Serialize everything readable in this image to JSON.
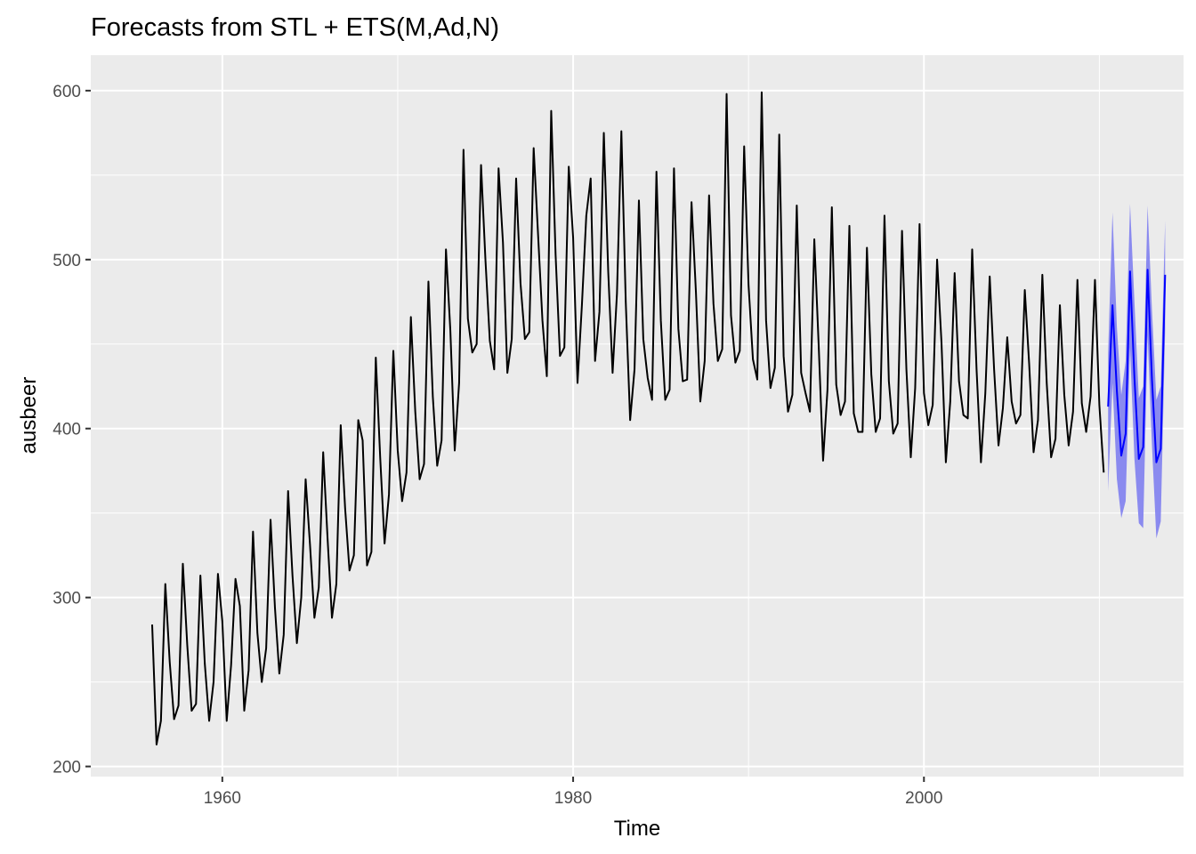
{
  "chart_data": {
    "type": "line",
    "title": "Forecasts from STL +  ETS(M,Ad,N)",
    "xlabel": "Time",
    "ylabel": "ausbeer",
    "xlim": [
      1952.5,
      2014.8
    ],
    "ylim": [
      194,
      621
    ],
    "x_ticks": [
      1960,
      1980,
      2000
    ],
    "x_tick_labels": [
      "1960",
      "1980",
      "2000"
    ],
    "y_ticks": [
      200,
      300,
      400,
      500,
      600
    ],
    "y_tick_labels": [
      "200",
      "300",
      "400",
      "500",
      "600"
    ],
    "grid": true,
    "start": 1956.0,
    "frequency": 4,
    "series": [
      {
        "name": "ausbeer",
        "color": "#000000",
        "values": [
          284,
          213,
          227,
          308,
          262,
          228,
          236,
          320,
          272,
          233,
          237,
          313,
          261,
          227,
          250,
          314,
          286,
          227,
          260,
          311,
          295,
          233,
          257,
          339,
          279,
          250,
          270,
          346,
          294,
          255,
          278,
          363,
          313,
          273,
          300,
          370,
          331,
          288,
          306,
          386,
          335,
          288,
          308,
          402,
          353,
          316,
          325,
          405,
          393,
          319,
          327,
          442,
          383,
          332,
          361,
          446,
          387,
          357,
          374,
          466,
          410,
          370,
          379,
          487,
          419,
          378,
          393,
          506,
          458,
          387,
          427,
          565,
          465,
          445,
          450,
          556,
          500,
          452,
          435,
          554,
          510,
          433,
          453,
          548,
          486,
          453,
          457,
          566,
          515,
          464,
          431,
          588,
          503,
          443,
          448,
          555,
          513,
          427,
          473,
          526,
          548,
          440,
          469,
          575,
          493,
          433,
          480,
          576,
          475,
          405,
          435,
          535,
          453,
          430,
          417,
          552,
          464,
          417,
          423,
          554,
          459,
          428,
          429,
          534,
          481,
          416,
          440,
          538,
          474,
          440,
          447,
          598,
          467,
          439,
          446,
          567,
          485,
          441,
          429,
          599,
          464,
          424,
          436,
          574,
          443,
          410,
          420,
          532,
          433,
          421,
          410,
          512,
          449,
          381,
          423,
          531,
          426,
          408,
          416,
          520,
          409,
          398,
          398,
          507,
          432,
          398,
          406,
          526,
          428,
          397,
          403,
          517,
          435,
          383,
          424,
          521,
          421,
          402,
          414,
          500,
          451,
          380,
          416,
          492,
          428,
          408,
          406,
          506,
          435,
          380,
          421,
          490,
          435,
          390,
          412,
          454,
          416,
          403,
          408,
          482,
          438,
          386,
          405,
          491,
          427,
          383,
          394,
          473,
          420,
          390,
          410,
          488,
          415,
          398,
          419,
          488,
          414,
          374
        ]
      }
    ],
    "forecast": {
      "name": "STL + ETS(M,Ad,N) forecast",
      "line_color": "#0000ff",
      "band_color": "#8080f0",
      "start": 2010.5,
      "point": [
        413,
        473,
        422,
        384,
        397,
        493,
        430,
        382,
        389,
        494,
        429,
        380,
        388,
        491
      ],
      "lower": [
        363,
        427,
        370,
        347,
        357,
        448,
        382,
        344,
        341,
        455,
        390,
        335,
        345,
        458
      ],
      "upper": [
        445,
        528,
        460,
        420,
        440,
        533,
        475,
        418,
        425,
        532,
        470,
        417,
        425,
        523
      ]
    }
  }
}
